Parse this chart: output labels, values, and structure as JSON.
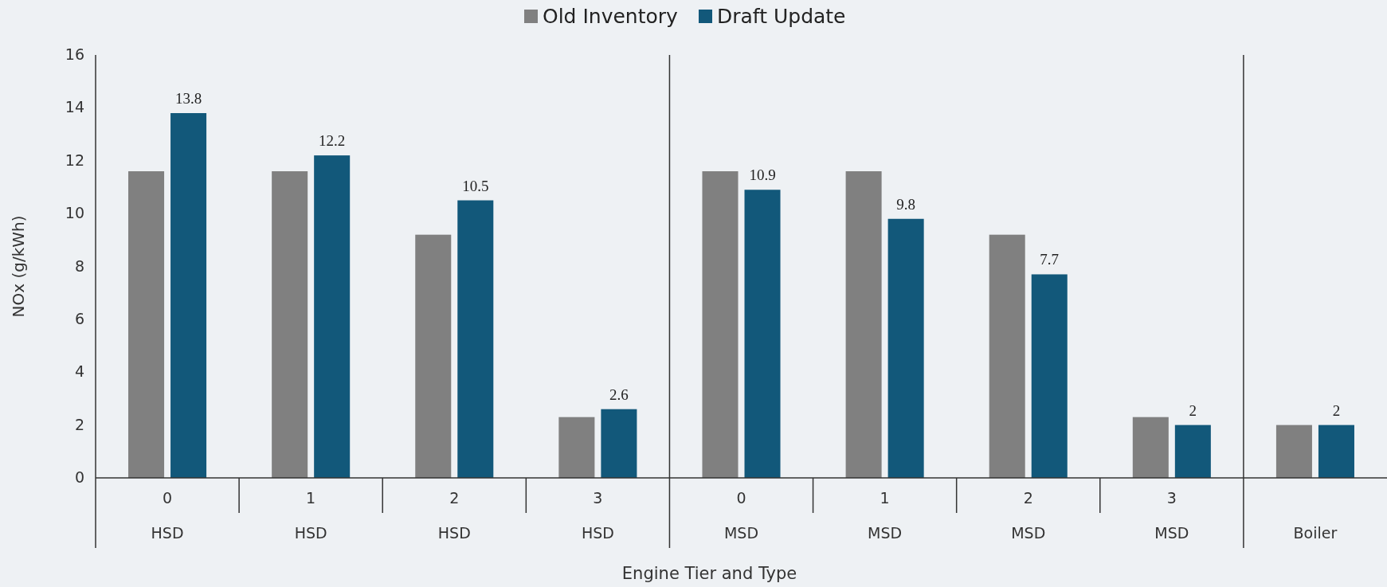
{
  "chart_data": {
    "type": "bar",
    "xlabel": "Engine Tier and Type",
    "ylabel": "NOx (g/kWh)",
    "categories": [
      "0\nHSD",
      "1\nHSD",
      "2\nHSD",
      "3\nHSD",
      "0\nMSD",
      "1\nMSD",
      "2\nMSD",
      "3\nMSD",
      "\nBoiler"
    ],
    "series": [
      {
        "name": "Old Inventory",
        "color": "#808080",
        "values": [
          11.6,
          11.6,
          9.2,
          2.3,
          11.6,
          11.6,
          9.2,
          2.3,
          2.0
        ]
      },
      {
        "name": "Draft Update",
        "color": "#12587a",
        "values": [
          13.8,
          12.2,
          10.5,
          2.6,
          10.9,
          9.8,
          7.7,
          2,
          2
        ],
        "value_labels": [
          "13.8",
          "12.2",
          "10.5",
          "2.6",
          "10.9",
          "9.8",
          "7.7",
          "2",
          "2"
        ]
      }
    ],
    "ylim": [
      0,
      16
    ],
    "yticks": [
      0,
      2,
      4,
      6,
      8,
      10,
      12,
      14,
      16
    ],
    "grid": false,
    "legend": "top"
  }
}
